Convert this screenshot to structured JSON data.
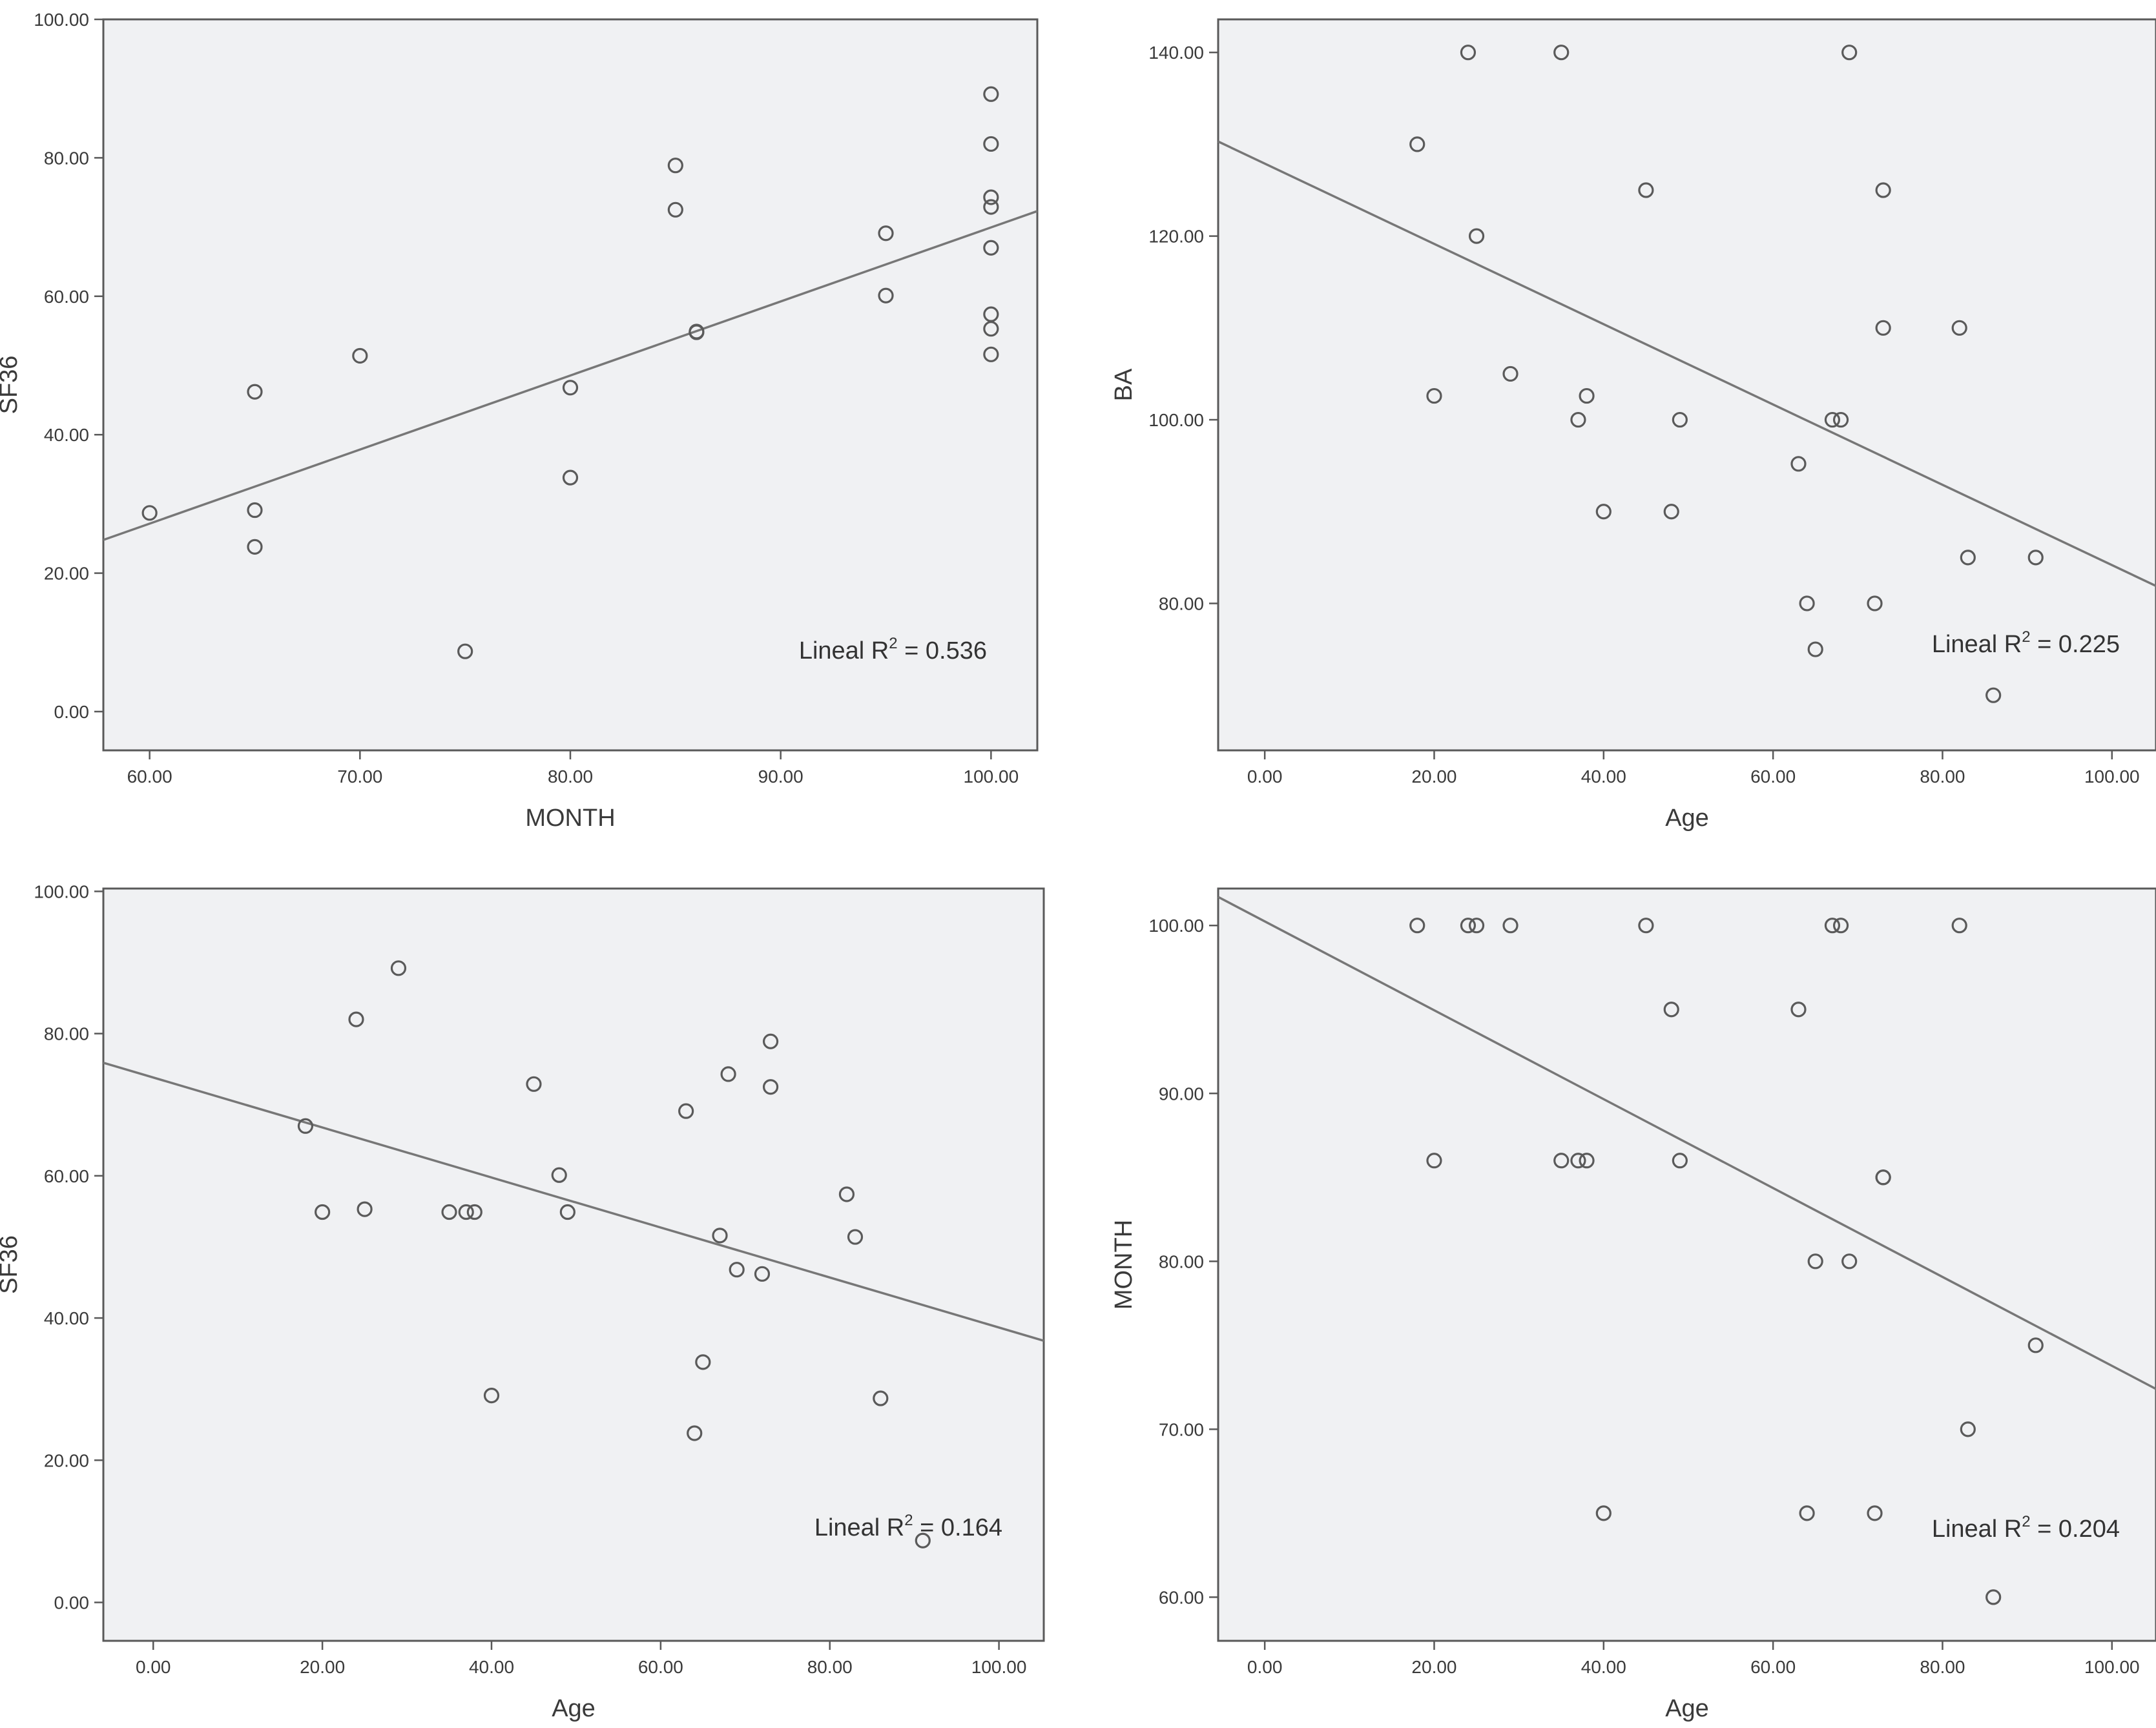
{
  "chart_data": [
    {
      "type": "scatter",
      "xlabel": "MONTH",
      "ylabel": "SF36",
      "xlim": [
        57.8,
        102.2
      ],
      "ylim": [
        -5.6,
        100
      ],
      "xticks": [
        60,
        70,
        80,
        90,
        100
      ],
      "xtick_labels": [
        "60.00",
        "70.00",
        "80.00",
        "90.00",
        "100.00"
      ],
      "yticks": [
        0,
        20,
        40,
        60,
        80,
        100
      ],
      "ytick_labels": [
        "0.00",
        "20.00",
        "40.00",
        "60.00",
        "80.00",
        "100.00"
      ],
      "points": [
        {
          "x": 60,
          "y": 28.7
        },
        {
          "x": 65,
          "y": 46.2
        },
        {
          "x": 65,
          "y": 29.1
        },
        {
          "x": 65,
          "y": 23.8
        },
        {
          "x": 70,
          "y": 51.4
        },
        {
          "x": 75,
          "y": 8.7
        },
        {
          "x": 80,
          "y": 46.8
        },
        {
          "x": 80,
          "y": 33.8
        },
        {
          "x": 85,
          "y": 78.9
        },
        {
          "x": 85,
          "y": 72.5
        },
        {
          "x": 86,
          "y": 54.9
        },
        {
          "x": 86,
          "y": 54.8
        },
        {
          "x": 95,
          "y": 69.1
        },
        {
          "x": 95,
          "y": 60.1
        },
        {
          "x": 100,
          "y": 89.2
        },
        {
          "x": 100,
          "y": 82
        },
        {
          "x": 100,
          "y": 74.3
        },
        {
          "x": 100,
          "y": 72.9
        },
        {
          "x": 100,
          "y": 67
        },
        {
          "x": 100,
          "y": 57.4
        },
        {
          "x": 100,
          "y": 55.3
        },
        {
          "x": 100,
          "y": 51.6
        }
      ],
      "fit_line": {
        "x1": 57.8,
        "y1": 24.8,
        "x2": 102.2,
        "y2": 72.3
      },
      "r2_prefix": "Lineal R",
      "r2_exponent": "2",
      "r2_value": " = 0.536"
    },
    {
      "type": "scatter",
      "xlabel": "Age",
      "ylabel": "BA",
      "xlim": [
        -5.5,
        105.2
      ],
      "ylim": [
        64,
        143.6
      ],
      "xticks": [
        0,
        20,
        40,
        60,
        80,
        100
      ],
      "xtick_labels": [
        "0.00",
        "20.00",
        "40.00",
        "60.00",
        "80.00",
        "100.00"
      ],
      "yticks": [
        80,
        100,
        120,
        140
      ],
      "ytick_labels": [
        "80.00",
        "100.00",
        "120.00",
        "140.00"
      ],
      "points": [
        {
          "x": 18,
          "y": 130
        },
        {
          "x": 20,
          "y": 102.6
        },
        {
          "x": 24,
          "y": 140
        },
        {
          "x": 25,
          "y": 120
        },
        {
          "x": 29,
          "y": 105
        },
        {
          "x": 35,
          "y": 140
        },
        {
          "x": 37,
          "y": 100
        },
        {
          "x": 38,
          "y": 102.6
        },
        {
          "x": 40,
          "y": 90
        },
        {
          "x": 45,
          "y": 125
        },
        {
          "x": 48,
          "y": 90
        },
        {
          "x": 49,
          "y": 100
        },
        {
          "x": 63,
          "y": 95.2
        },
        {
          "x": 64,
          "y": 80
        },
        {
          "x": 65,
          "y": 75
        },
        {
          "x": 67,
          "y": 100
        },
        {
          "x": 68,
          "y": 100
        },
        {
          "x": 69,
          "y": 140
        },
        {
          "x": 72,
          "y": 80
        },
        {
          "x": 73,
          "y": 125
        },
        {
          "x": 73,
          "y": 110
        },
        {
          "x": 82,
          "y": 110
        },
        {
          "x": 83,
          "y": 85
        },
        {
          "x": 86,
          "y": 70
        },
        {
          "x": 91,
          "y": 85
        }
      ],
      "fit_line": {
        "x1": -5.5,
        "y1": 130.3,
        "x2": 105.2,
        "y2": 81.9
      },
      "r2_prefix": "Lineal R",
      "r2_exponent": "2",
      "r2_value": " = 0.225"
    },
    {
      "type": "scatter",
      "xlabel": "Age",
      "ylabel": "SF36",
      "xlim": [
        -5.9,
        105.3
      ],
      "ylim": [
        -5.4,
        100.4
      ],
      "xticks": [
        0,
        20,
        40,
        60,
        80,
        100
      ],
      "xtick_labels": [
        "0.00",
        "20.00",
        "40.00",
        "60.00",
        "80.00",
        "100.00"
      ],
      "yticks": [
        0,
        20,
        40,
        60,
        80,
        100
      ],
      "ytick_labels": [
        "0.00",
        "20.00",
        "40.00",
        "60.00",
        "80.00",
        "100.00"
      ],
      "points": [
        {
          "x": 18,
          "y": 67
        },
        {
          "x": 20,
          "y": 54.9
        },
        {
          "x": 24,
          "y": 82
        },
        {
          "x": 25,
          "y": 55.3
        },
        {
          "x": 29,
          "y": 89.2
        },
        {
          "x": 35,
          "y": 54.9
        },
        {
          "x": 37,
          "y": 54.9
        },
        {
          "x": 38,
          "y": 54.9
        },
        {
          "x": 40,
          "y": 29.1
        },
        {
          "x": 45,
          "y": 72.9
        },
        {
          "x": 48,
          "y": 60.1
        },
        {
          "x": 49,
          "y": 54.9
        },
        {
          "x": 63,
          "y": 69.1
        },
        {
          "x": 64,
          "y": 23.8
        },
        {
          "x": 65,
          "y": 33.8
        },
        {
          "x": 67,
          "y": 51.6
        },
        {
          "x": 68,
          "y": 74.3
        },
        {
          "x": 69,
          "y": 46.8
        },
        {
          "x": 72,
          "y": 46.2
        },
        {
          "x": 73,
          "y": 78.9
        },
        {
          "x": 73,
          "y": 72.5
        },
        {
          "x": 82,
          "y": 57.4
        },
        {
          "x": 83,
          "y": 51.4
        },
        {
          "x": 86,
          "y": 28.7
        },
        {
          "x": 91,
          "y": 8.7
        }
      ],
      "fit_line": {
        "x1": -5.9,
        "y1": 75.9,
        "x2": 105.3,
        "y2": 36.8
      },
      "r2_prefix": "Lineal R",
      "r2_exponent": "2",
      "r2_value": " = 0.164"
    },
    {
      "type": "scatter",
      "xlabel": "Age",
      "ylabel": "MONTH",
      "xlim": [
        -5.5,
        105.2
      ],
      "ylim": [
        57.4,
        102.2
      ],
      "xticks": [
        0,
        20,
        40,
        60,
        80,
        100
      ],
      "xtick_labels": [
        "0.00",
        "20.00",
        "40.00",
        "60.00",
        "80.00",
        "100.00"
      ],
      "yticks": [
        60,
        70,
        80,
        90,
        100
      ],
      "ytick_labels": [
        "60.00",
        "70.00",
        "80.00",
        "90.00",
        "100.00"
      ],
      "points": [
        {
          "x": 18,
          "y": 100
        },
        {
          "x": 20,
          "y": 86
        },
        {
          "x": 24,
          "y": 100
        },
        {
          "x": 25,
          "y": 100
        },
        {
          "x": 29,
          "y": 100
        },
        {
          "x": 35,
          "y": 86
        },
        {
          "x": 37,
          "y": 86
        },
        {
          "x": 38,
          "y": 86
        },
        {
          "x": 40,
          "y": 65
        },
        {
          "x": 45,
          "y": 100
        },
        {
          "x": 48,
          "y": 95
        },
        {
          "x": 49,
          "y": 86
        },
        {
          "x": 63,
          "y": 95
        },
        {
          "x": 64,
          "y": 65
        },
        {
          "x": 65,
          "y": 80
        },
        {
          "x": 67,
          "y": 100
        },
        {
          "x": 68,
          "y": 100
        },
        {
          "x": 69,
          "y": 80
        },
        {
          "x": 72,
          "y": 65
        },
        {
          "x": 73,
          "y": 85
        },
        {
          "x": 73,
          "y": 85
        },
        {
          "x": 82,
          "y": 100
        },
        {
          "x": 83,
          "y": 70
        },
        {
          "x": 86,
          "y": 60
        },
        {
          "x": 91,
          "y": 75
        }
      ],
      "fit_line": {
        "x1": -5.5,
        "y1": 101.7,
        "x2": 105.2,
        "y2": 72.4
      },
      "r2_prefix": "Lineal R",
      "r2_exponent": "2",
      "r2_value": " = 0.204"
    }
  ]
}
